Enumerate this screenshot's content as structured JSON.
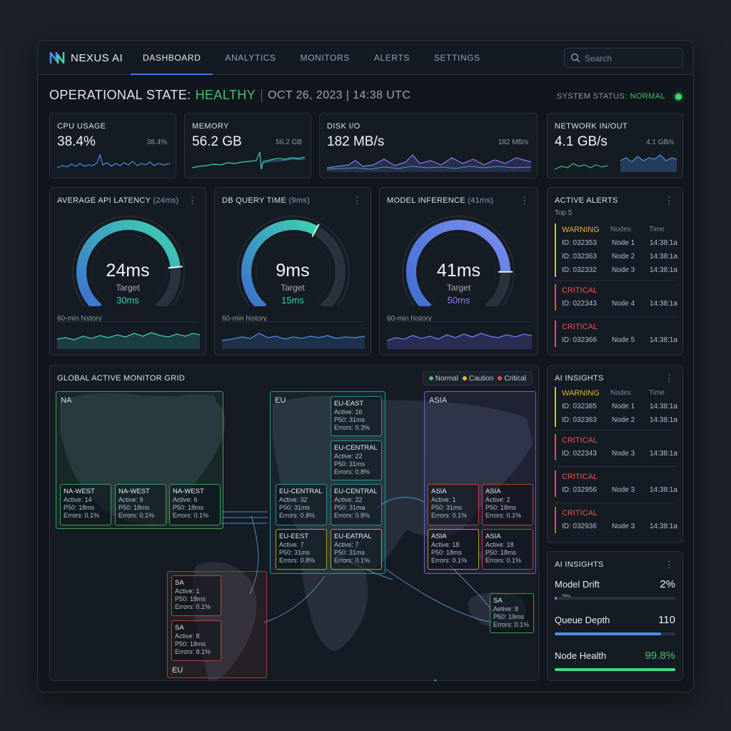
{
  "brand": {
    "name": "NEXUS AI",
    "logo_icon": "nexus-logo-icon"
  },
  "nav": [
    {
      "label": "DASHBOARD",
      "active": true
    },
    {
      "label": "ANALYTICS",
      "active": false
    },
    {
      "label": "MONITORS",
      "active": false
    },
    {
      "label": "ALERTS",
      "active": false
    },
    {
      "label": "SETTINGS",
      "active": false
    }
  ],
  "search": {
    "placeholder": "Search",
    "icon": "search-icon"
  },
  "header": {
    "title_prefix": "OPERATIONAL STATE:",
    "state": "HEALTHY",
    "date": "OCT 26, 2023 | 14:38 UTC",
    "system_status_label": "SYSTEM STATUS:",
    "system_status_value": "NORMAL"
  },
  "metrics": [
    {
      "label": "CPU USAGE",
      "value": "38.4%",
      "sub": "38.4%"
    },
    {
      "label": "MEMORY",
      "value": "56.2 GB",
      "sub": "56.2 GB"
    },
    {
      "label": "DISK I/O",
      "value": "182 MB/s",
      "sub": "182 MB/s"
    },
    {
      "label": "NETWORK IN/OUT",
      "value": "4.1 GB/s",
      "sub": "4.1 GB/s"
    }
  ],
  "gauges": [
    {
      "title": "AVERAGE API LATENCY",
      "title_ms": "(24ms)",
      "value": "24ms",
      "target_label": "Target",
      "target": "30ms",
      "target_color": "#3fd1b0",
      "level": 0.8,
      "history_label": "60-min history"
    },
    {
      "title": "DB QUERY TIME",
      "title_ms": "(9ms)",
      "value": "9ms",
      "target_label": "Target",
      "target": "15ms",
      "target_color": "#3fd1b0",
      "level": 0.6,
      "history_label": "60-min history"
    },
    {
      "title": "MODEL INFERENCE",
      "title_ms": "(41ms)",
      "value": "41ms",
      "target_label": "Target",
      "target": "50ms",
      "target_color": "#8b7ef0",
      "level": 0.82,
      "history_label": "60-min history"
    }
  ],
  "active_alerts": {
    "title": "ACTIVE ALERTS",
    "subtitle": "Top 5",
    "col_nodes": "Nodes",
    "col_time": "Time",
    "groups": [
      {
        "severity": "WARNING",
        "color": "#e3b341",
        "rows": [
          {
            "id": "ID: 032353",
            "node": "Node 1",
            "time": "14:38:1a"
          },
          {
            "id": "ID: 032363",
            "node": "Node 2",
            "time": "14:38:1a"
          },
          {
            "id": "ID: 032332",
            "node": "Node 3",
            "time": "14:38:1a"
          }
        ]
      },
      {
        "severity": "CRITICAL",
        "color": "#e5534b",
        "rows": [
          {
            "id": "ID: 022343",
            "node": "Node 4",
            "time": "14:38:1a"
          }
        ]
      },
      {
        "severity": "CRITICAL",
        "color": "#e5534b",
        "rows": [
          {
            "id": "ID: 032366",
            "node": "Node 5",
            "time": "14:38:1a"
          }
        ]
      }
    ]
  },
  "ai_insights_alerts": {
    "title": "AI INSIGHTS",
    "col_nodes": "Nodes",
    "col_time": "Time",
    "groups": [
      {
        "severity": "WARNING",
        "color": "#e3b341",
        "rows": [
          {
            "id": "ID: 032385",
            "node": "Node 1",
            "time": "14:38:1a"
          },
          {
            "id": "ID: 032363",
            "node": "Node 2",
            "time": "14:38:1a"
          }
        ]
      },
      {
        "severity": "CRITICAL",
        "color": "#e5534b",
        "rows": [
          {
            "id": "ID: 022343",
            "node": "Node 3",
            "time": "14:38:1a"
          }
        ]
      },
      {
        "severity": "CRITICAL",
        "color": "#e5534b",
        "rows": [
          {
            "id": "ID: 032956",
            "node": "Node 3",
            "time": "14:38:1a"
          }
        ]
      },
      {
        "severity": "CRITICAL",
        "color": "#e5534b",
        "rows": [
          {
            "id": "ID: 032936",
            "node": "Node 3",
            "time": "14:38:1a"
          }
        ]
      }
    ]
  },
  "ai_insights_metrics": {
    "title": "AI INSIGHTS",
    "items": [
      {
        "label": "Model Drift",
        "value": "2%",
        "bar_label": "2%",
        "level": 0.02,
        "color": "#8b7ef0",
        "value_color": "#e6edf3"
      },
      {
        "label": "Queue Depth",
        "value": "110",
        "bar_label": "",
        "level": 0.88,
        "color": "#4a90e2",
        "value_color": "#e6edf3"
      },
      {
        "label": "Node Health",
        "value": "99.8%",
        "bar_label": "",
        "level": 0.998,
        "color": "#3ddc84",
        "value_color": "#45c16a"
      }
    ]
  },
  "map": {
    "title": "GLOBAL ACTIVE MONITOR GRID",
    "legend": [
      {
        "label": "Normal",
        "color": "#45c16a"
      },
      {
        "label": "Caution",
        "color": "#e3b341"
      },
      {
        "label": "Critical",
        "color": "#e5534b"
      }
    ],
    "regions": {
      "na": "NA",
      "eu": "EU",
      "asia": "ASIA",
      "sa_bottom": "EU"
    },
    "monitors": {
      "na1": {
        "name": "NA-WEST",
        "active": "Active: 14",
        "p50": "P50: 18ms",
        "errors": "Errors: 0.1%"
      },
      "na2": {
        "name": "NA-WEST",
        "active": "Active: 9",
        "p50": "P50: 18ms",
        "errors": "Errors: 0.1%"
      },
      "na3": {
        "name": "NA-WEST",
        "active": "Active: 6",
        "p50": "P50: 18ms",
        "errors": "Errors: 0.1%"
      },
      "eu_east": {
        "name": "EU-EAST",
        "active": "Active: 16",
        "p50": "P50: 31ms",
        "errors": "Errors: 0.3%"
      },
      "eu_c1": {
        "name": "EU-CENTRAL",
        "active": "Active: 22",
        "p50": "P50: 31ms",
        "errors": "Errors: 0.8%"
      },
      "eu_c2": {
        "name": "EU-CENTRAL",
        "active": "Active: 32",
        "p50": "P50: 31ms",
        "errors": "Errors: 0.8%"
      },
      "eu_c3": {
        "name": "EU-CENTRAL",
        "active": "Active: 22",
        "p50": "P50: 31ma",
        "errors": "Errors: 0.8%"
      },
      "eu_e1": {
        "name": "EU-EEST",
        "active": "Active: 7",
        "p50": "P50: 31ms",
        "errors": "Errors: 0.8%"
      },
      "eu_e2": {
        "name": "EU-EATRAL",
        "active": "Active: 7",
        "p50": "P50: 31ms",
        "errors": "Errors: 0.1%"
      },
      "asia1": {
        "name": "ASIA",
        "active": "Active: 1",
        "p50": "P50: 31ms",
        "errors": "Errors: 0.1%"
      },
      "asia2": {
        "name": "ASIA",
        "active": "Active: 2",
        "p50": "P50: 18ms",
        "errors": "Errors: 0.1%"
      },
      "asia3": {
        "name": "ASIA",
        "active": "Active: 18",
        "p50": "P50: 18ms",
        "errors": "Errors: 0.1%"
      },
      "asia4": {
        "name": "ASIA",
        "active": "Active: 18",
        "p50": "P50: 18ms",
        "errors": "Errors: 0.1%"
      },
      "sa1": {
        "name": "SA",
        "active": "Active: 1",
        "p50": "P50: 18ms",
        "errors": "Errors: 0.1%"
      },
      "sa2": {
        "name": "SA",
        "active": "Active: 8",
        "p50": "P50: 18ms",
        "errors": "Errors: 8.1%"
      },
      "sa3": {
        "name": "SA",
        "active": "Aetive: 8",
        "p50": "P50: 19ms",
        "errors": "Errors: 0.1%"
      }
    }
  },
  "colors": {
    "accent": "#3e7be0",
    "normal": "#45c16a",
    "caution": "#e3b341",
    "critical": "#e5534b"
  }
}
